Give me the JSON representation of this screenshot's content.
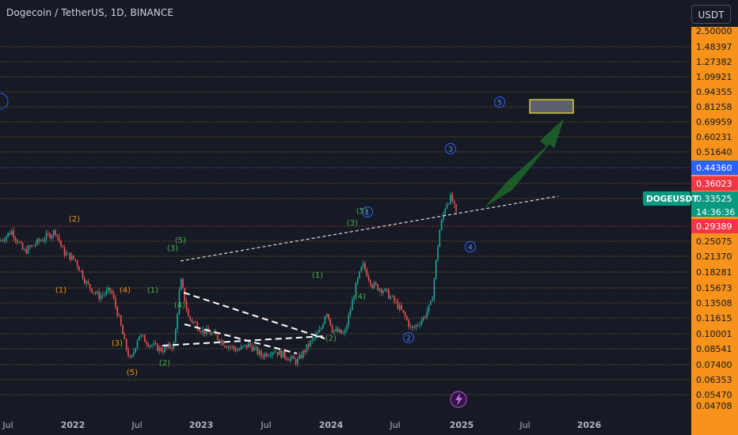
{
  "header": {
    "title": "Dogecoin / TetherUS, 1D, BINANCE",
    "currency": "USDT"
  },
  "chart_data": {
    "type": "candlestick",
    "symbol_tag": "DOGEUSDT",
    "countdown": "14:36:36",
    "price_scale_labels": [
      "2.50000",
      "1.48397",
      "1.27382",
      "1.09921",
      "0.94355",
      "0.81258",
      "0.69959",
      "0.60231",
      "0.51640",
      "0.44360",
      "0.36023",
      "0.33525",
      "0.29389",
      "0.25075",
      "0.21370",
      "0.18281",
      "0.15673",
      "0.13508",
      "0.11615",
      "0.10001",
      "0.08541",
      "0.07400",
      "0.06353",
      "0.05470",
      "0.04708"
    ],
    "highlight_labels": [
      {
        "value": "0.44360",
        "color": "#2962ff"
      },
      {
        "value": "0.36023",
        "color": "#f23645"
      },
      {
        "value": "0.33525",
        "color": "#089981"
      },
      {
        "value": "0.29389",
        "color": "#f23645"
      }
    ],
    "scale_color": "#f7931a",
    "x_ticks": [
      "Jul",
      "2022",
      "Jul",
      "2023",
      "Jul",
      "2024",
      "Jul",
      "2025",
      "Jul",
      "2026"
    ],
    "wave_labels": [
      {
        "text": "(1)",
        "color": "#f7931a"
      },
      {
        "text": "(2)",
        "color": "#f7931a"
      },
      {
        "text": "(3)",
        "color": "#f7931a"
      },
      {
        "text": "(4)",
        "color": "#f7931a"
      },
      {
        "text": "(5)",
        "color": "#f7931a"
      },
      {
        "text": "(1)",
        "color": "#4caf50"
      },
      {
        "text": "(2)",
        "color": "#4caf50"
      },
      {
        "text": "(3)",
        "color": "#4caf50"
      },
      {
        "text": "(4)",
        "color": "#4caf50"
      },
      {
        "text": "(5)",
        "color": "#4caf50"
      },
      {
        "text": "(1)",
        "color": "#4caf50"
      },
      {
        "text": "(2)",
        "color": "#4caf50"
      },
      {
        "text": "(3)",
        "color": "#4caf50"
      },
      {
        "text": "(4)",
        "color": "#4caf50"
      },
      {
        "text": "(5)",
        "color": "#4caf50"
      }
    ],
    "circle_labels": [
      "1",
      "2",
      "3",
      "4",
      "5"
    ],
    "target_zone": {
      "low": 0.7,
      "high": 0.8
    },
    "trendline_color": "#ffffff",
    "bullish_color": "#26a69a",
    "bearish_color": "#ef5350"
  }
}
